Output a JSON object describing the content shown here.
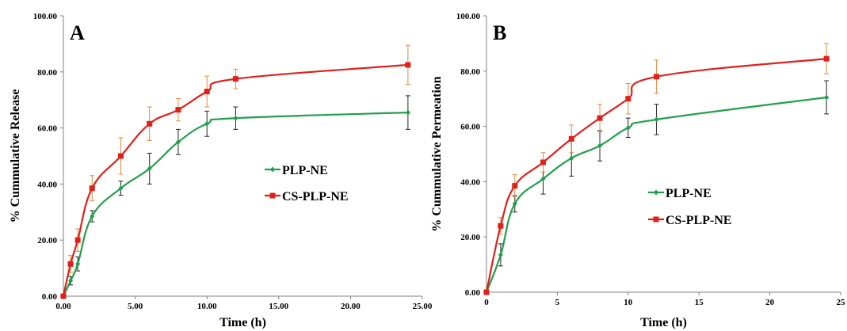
{
  "colors": {
    "plp": "#22a04b",
    "cs": "#e0201b",
    "err_plp": "#222222",
    "err_cs": "#e08a3a",
    "axis": "#808080"
  },
  "chart_data": [
    {
      "type": "line",
      "panel": "A",
      "xlabel": "Time (h)",
      "ylabel": "% Cummulative Release",
      "xlim": [
        0,
        25
      ],
      "ylim": [
        0,
        100
      ],
      "xticks": [
        "0.00",
        "5.00",
        "10.00",
        "15.00",
        "20.00",
        "25.00"
      ],
      "yticks": [
        "0.00",
        "20.00",
        "40.00",
        "60.00",
        "80.00",
        "100.00"
      ],
      "legend_position": "center-right",
      "series": [
        {
          "name": "PLP-NE",
          "marker": "diamond",
          "x": [
            0,
            0.5,
            1,
            2,
            4,
            6,
            8,
            10,
            12,
            24
          ],
          "y": [
            0,
            5.5,
            11.5,
            28.5,
            38.5,
            45.5,
            55,
            61.5,
            63.5,
            65.5
          ],
          "err": [
            0,
            1.5,
            2.5,
            2,
            2.5,
            5.5,
            4.5,
            4.5,
            4,
            6
          ]
        },
        {
          "name": "CS-PLP-NE",
          "marker": "square",
          "x": [
            0,
            0.5,
            1,
            2,
            4,
            6,
            8,
            10,
            12,
            24
          ],
          "y": [
            0,
            11.5,
            20,
            38.5,
            50,
            61.5,
            66.5,
            73,
            77.5,
            82.5
          ],
          "err": [
            0,
            3,
            4,
            4.5,
            6.5,
            6,
            4,
            5.5,
            3.5,
            7
          ]
        }
      ]
    },
    {
      "type": "line",
      "panel": "B",
      "xlabel": "Time (h)",
      "ylabel": "% Cummulative Permeation",
      "xlim": [
        0,
        25
      ],
      "ylim": [
        0,
        100
      ],
      "xticks": [
        "0",
        "5",
        "10",
        "15",
        "20",
        "25"
      ],
      "yticks": [
        "0.00",
        "20.00",
        "40.00",
        "60.00",
        "80.00",
        "100.00"
      ],
      "legend_position": "center-right",
      "series": [
        {
          "name": "PLP-NE",
          "marker": "diamond",
          "x": [
            0,
            1,
            2,
            4,
            6,
            8,
            10,
            12,
            24
          ],
          "y": [
            0,
            13.5,
            32,
            41,
            48.5,
            53,
            59.5,
            62.5,
            70.5
          ],
          "err": [
            0,
            4,
            3,
            5.5,
            6.5,
            5.5,
            3.5,
            5.5,
            6
          ]
        },
        {
          "name": "CS-PLP-NE",
          "marker": "square",
          "x": [
            0,
            1,
            2,
            4,
            6,
            8,
            10,
            12,
            24
          ],
          "y": [
            0,
            24,
            38.5,
            47,
            55.5,
            63,
            70,
            78,
            84.5
          ],
          "err": [
            0,
            3,
            4,
            3.5,
            5,
            5,
            5.5,
            6,
            5.5
          ]
        }
      ]
    }
  ]
}
